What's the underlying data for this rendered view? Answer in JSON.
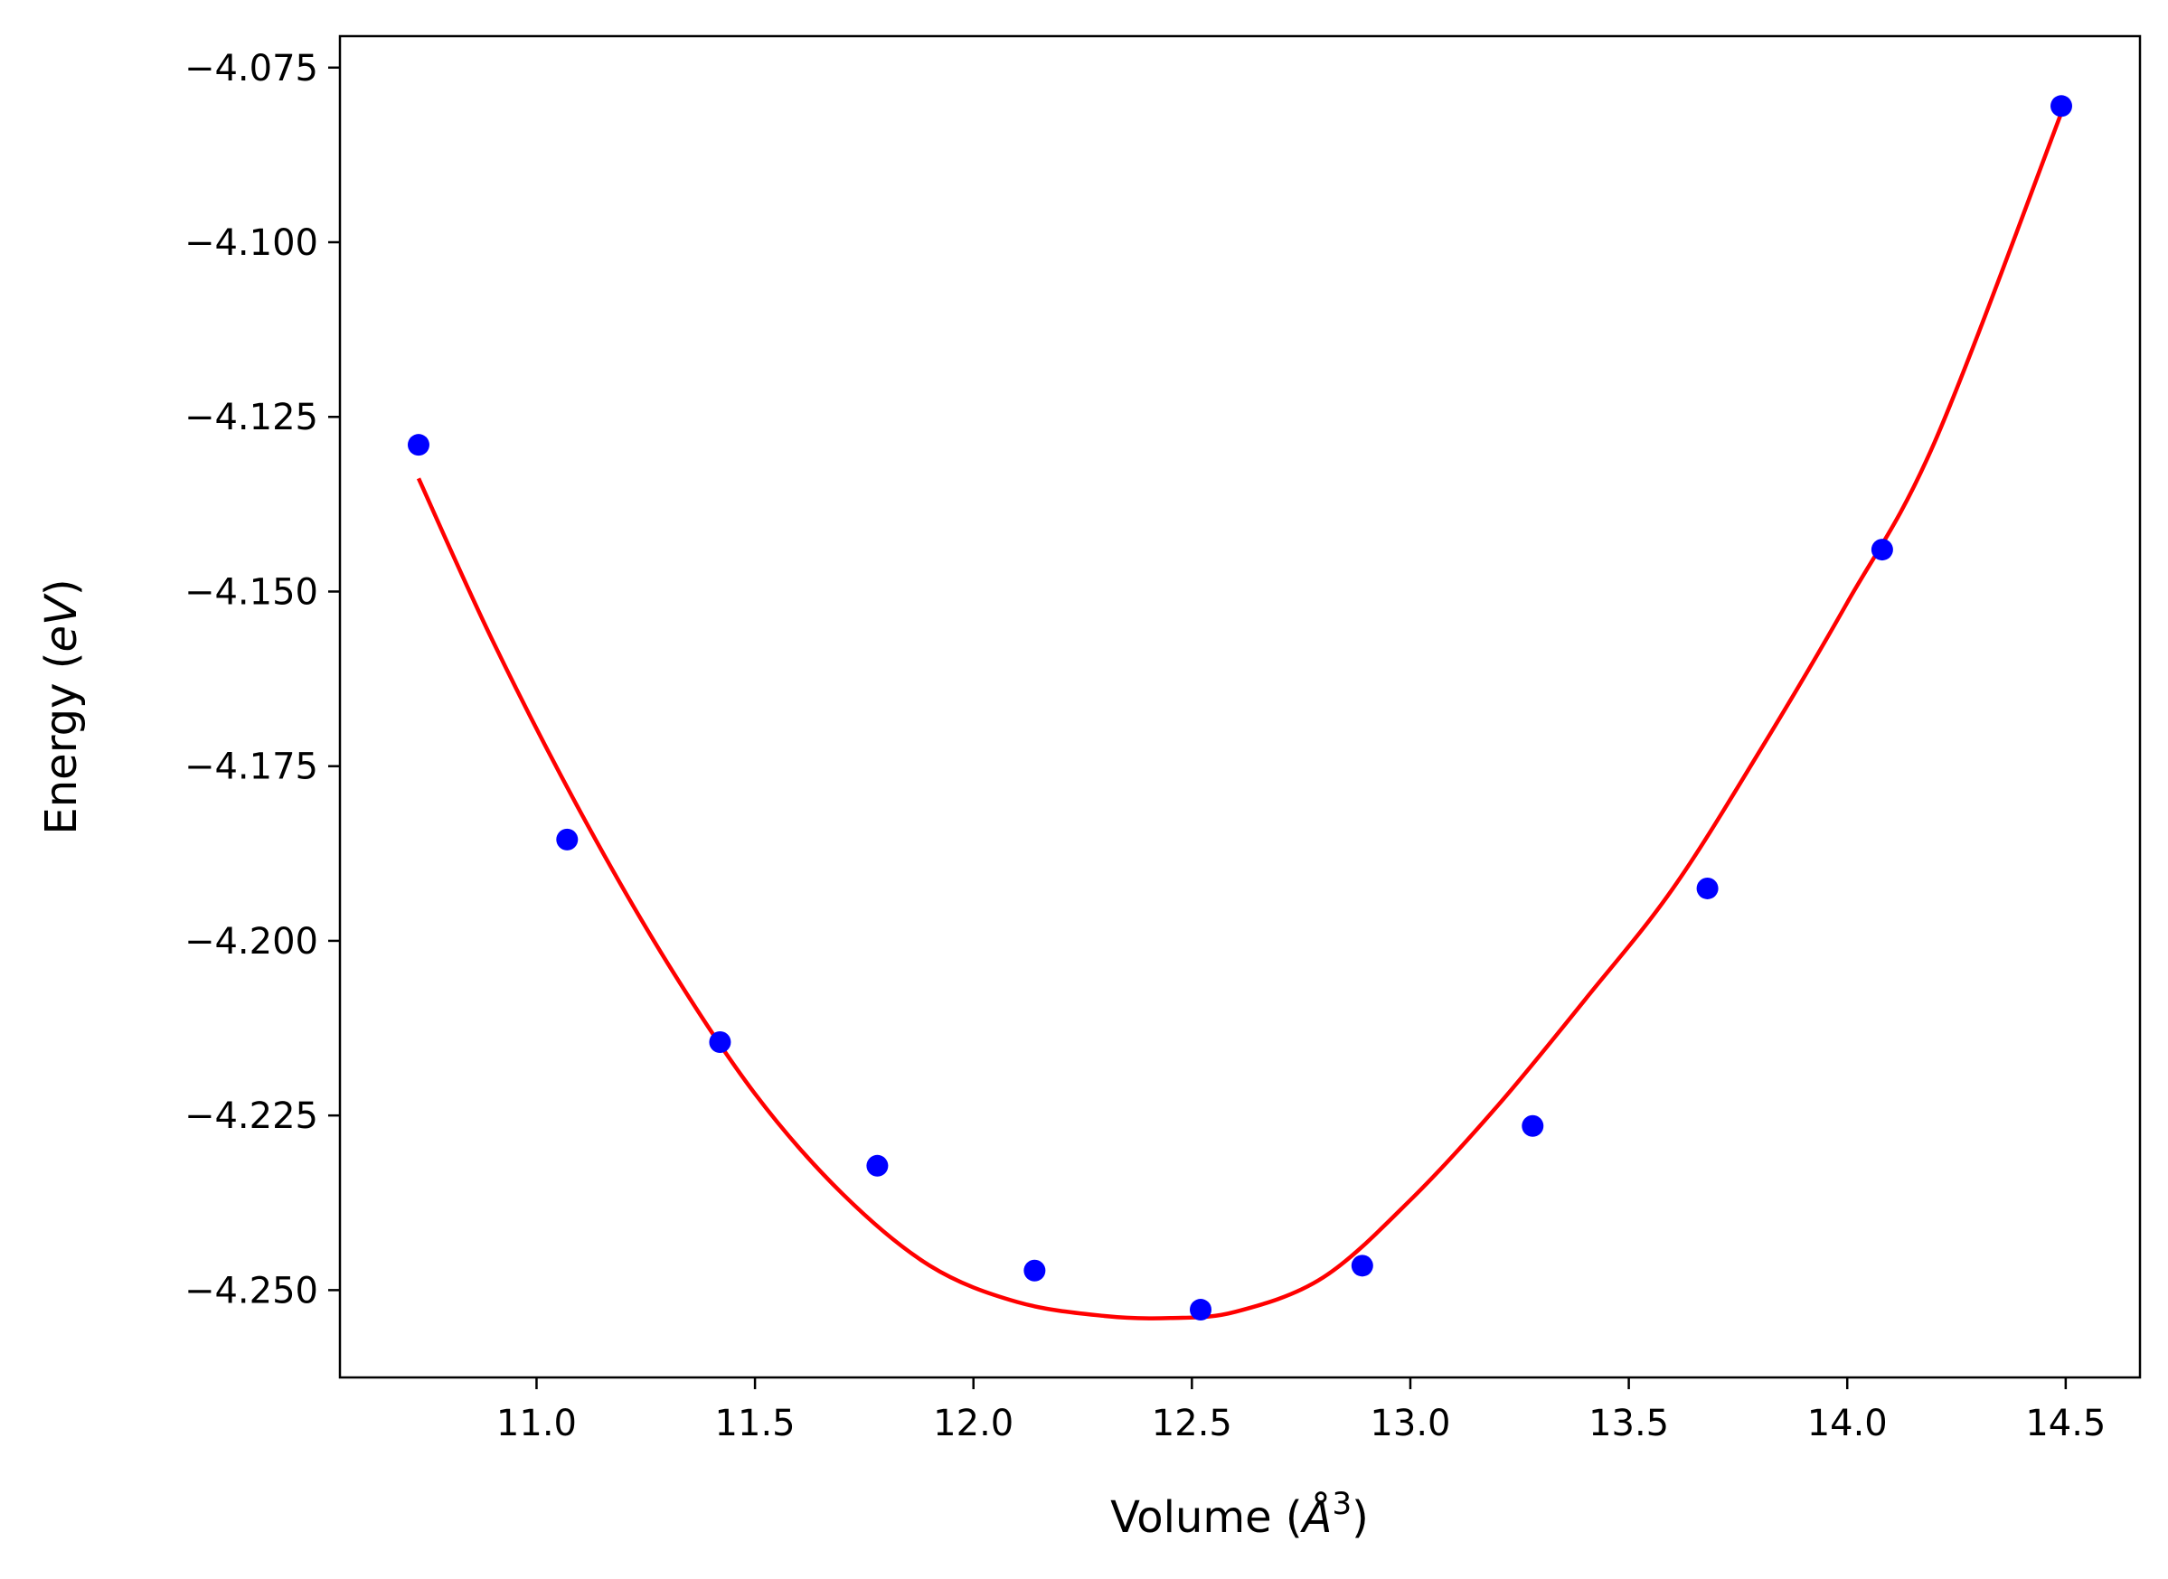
{
  "chart_data": {
    "type": "scatter",
    "title": "",
    "xlabel": "Volume (",
    "xlabel_unit_base": "Å",
    "xlabel_unit_exp": "3",
    "xlabel_close": ")",
    "ylabel": "Energy (",
    "ylabel_unit": "eV",
    "ylabel_close": ")",
    "xlim": [
      10.55,
      14.67
    ],
    "ylim": [
      -4.2625,
      -4.0705
    ],
    "xticks": [
      11.0,
      11.5,
      12.0,
      12.5,
      13.0,
      13.5,
      14.0,
      14.5
    ],
    "xtick_labels": [
      "11.0",
      "11.5",
      "12.0",
      "12.5",
      "13.0",
      "13.5",
      "14.0",
      "14.5"
    ],
    "yticks": [
      -4.075,
      -4.1,
      -4.125,
      -4.15,
      -4.175,
      -4.2,
      -4.225,
      -4.25
    ],
    "ytick_labels": [
      "−4.075",
      "−4.100",
      "−4.125",
      "−4.150",
      "−4.175",
      "−4.200",
      "−4.225",
      "−4.250"
    ],
    "grid": false,
    "legend": "none",
    "series": [
      {
        "kind": "points",
        "color": "#0000ff",
        "x": [
          10.73,
          11.07,
          11.42,
          11.78,
          12.14,
          12.52,
          12.89,
          13.28,
          13.68,
          14.08,
          14.49
        ],
        "y": [
          -4.129,
          -4.1855,
          -4.2145,
          -4.2322,
          -4.2472,
          -4.2528,
          -4.2465,
          -4.2265,
          -4.1925,
          -4.144,
          -4.0805
        ]
      },
      {
        "kind": "fit-curve",
        "color": "#ff0000",
        "x": [
          10.73,
          10.9,
          11.1,
          11.3,
          11.5,
          11.7,
          11.9,
          12.1,
          12.3,
          12.45,
          12.6,
          12.8,
          13.0,
          13.2,
          13.4,
          13.6,
          13.8,
          14.0,
          14.2,
          14.49
        ],
        "y": [
          -4.1338,
          -4.1571,
          -4.1815,
          -4.2032,
          -4.2219,
          -4.2362,
          -4.2465,
          -4.2517,
          -4.2537,
          -4.254,
          -4.2531,
          -4.2482,
          -4.2371,
          -4.2236,
          -4.2084,
          -4.1926,
          -4.1728,
          -4.1516,
          -4.1286,
          -4.0815
        ]
      }
    ]
  }
}
